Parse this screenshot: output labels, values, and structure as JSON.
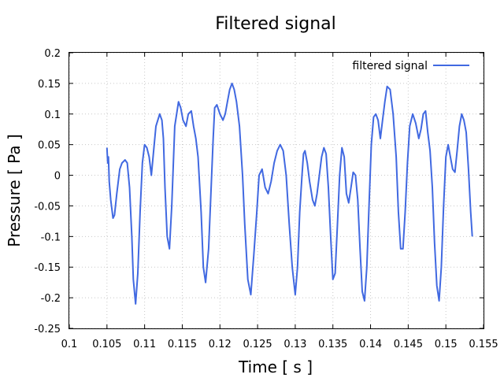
{
  "chart_data": {
    "type": "line",
    "title": "Filtered signal",
    "xlabel": "Time [ s ]",
    "ylabel": "Pressure [ Pa ]",
    "xlim": [
      0.1,
      0.155
    ],
    "ylim": [
      -0.25,
      0.2
    ],
    "xticks": [
      0.1,
      0.105,
      0.11,
      0.115,
      0.12,
      0.125,
      0.13,
      0.135,
      0.14,
      0.145,
      0.15,
      0.155
    ],
    "xtick_labels": [
      "0.1",
      "0.105",
      "0.11",
      "0.115",
      "0.12",
      "0.125",
      "0.13",
      "0.135",
      "0.14",
      "0.145",
      "0.15",
      "0.155"
    ],
    "yticks": [
      -0.25,
      -0.2,
      -0.15,
      -0.1,
      -0.05,
      0,
      0.05,
      0.1,
      0.15,
      0.2
    ],
    "ytick_labels": [
      "-0.25",
      "-0.2",
      "-0.15",
      "-0.1",
      "-0.05",
      "0",
      "0.05",
      "0.1",
      "0.15",
      "0.2"
    ],
    "grid": true,
    "legend_position": "top-right",
    "series": [
      {
        "name": "filtered signal",
        "color": "#4169e1",
        "points": [
          [
            0.105,
            0.045
          ],
          [
            0.1051,
            0.02
          ],
          [
            0.1052,
            0.03
          ],
          [
            0.1053,
            -0.01
          ],
          [
            0.1055,
            -0.04
          ],
          [
            0.1058,
            -0.07
          ],
          [
            0.106,
            -0.065
          ],
          [
            0.1063,
            -0.03
          ],
          [
            0.1067,
            0.01
          ],
          [
            0.107,
            0.02
          ],
          [
            0.1074,
            0.025
          ],
          [
            0.1077,
            0.02
          ],
          [
            0.108,
            -0.02
          ],
          [
            0.1083,
            -0.1
          ],
          [
            0.1085,
            -0.17
          ],
          [
            0.1088,
            -0.21
          ],
          [
            0.1091,
            -0.16
          ],
          [
            0.1094,
            -0.06
          ],
          [
            0.1097,
            0.02
          ],
          [
            0.11,
            0.05
          ],
          [
            0.1103,
            0.045
          ],
          [
            0.1106,
            0.03
          ],
          [
            0.1109,
            0.0
          ],
          [
            0.1112,
            0.04
          ],
          [
            0.1115,
            0.08
          ],
          [
            0.112,
            0.1
          ],
          [
            0.1123,
            0.09
          ],
          [
            0.1125,
            0.06
          ],
          [
            0.1127,
            -0.02
          ],
          [
            0.113,
            -0.1
          ],
          [
            0.1133,
            -0.12
          ],
          [
            0.1136,
            -0.05
          ],
          [
            0.114,
            0.08
          ],
          [
            0.1145,
            0.12
          ],
          [
            0.1148,
            0.11
          ],
          [
            0.1151,
            0.09
          ],
          [
            0.1155,
            0.08
          ],
          [
            0.1158,
            0.1
          ],
          [
            0.1162,
            0.105
          ],
          [
            0.1165,
            0.08
          ],
          [
            0.1168,
            0.06
          ],
          [
            0.1171,
            0.03
          ],
          [
            0.1175,
            -0.06
          ],
          [
            0.1178,
            -0.15
          ],
          [
            0.1181,
            -0.175
          ],
          [
            0.1185,
            -0.12
          ],
          [
            0.1188,
            -0.03
          ],
          [
            0.1191,
            0.06
          ],
          [
            0.1193,
            0.11
          ],
          [
            0.1196,
            0.115
          ],
          [
            0.12,
            0.1
          ],
          [
            0.1204,
            0.09
          ],
          [
            0.1207,
            0.1
          ],
          [
            0.121,
            0.12
          ],
          [
            0.1213,
            0.14
          ],
          [
            0.1216,
            0.15
          ],
          [
            0.1219,
            0.14
          ],
          [
            0.1222,
            0.12
          ],
          [
            0.1226,
            0.08
          ],
          [
            0.123,
            0.0
          ],
          [
            0.1233,
            -0.08
          ],
          [
            0.1237,
            -0.17
          ],
          [
            0.1241,
            -0.195
          ],
          [
            0.1245,
            -0.13
          ],
          [
            0.1249,
            -0.06
          ],
          [
            0.1252,
            0.0
          ],
          [
            0.1256,
            0.01
          ],
          [
            0.126,
            -0.02
          ],
          [
            0.1264,
            -0.03
          ],
          [
            0.1268,
            -0.01
          ],
          [
            0.1272,
            0.02
          ],
          [
            0.1276,
            0.04
          ],
          [
            0.128,
            0.05
          ],
          [
            0.1284,
            0.04
          ],
          [
            0.1288,
            0.0
          ],
          [
            0.1292,
            -0.08
          ],
          [
            0.1296,
            -0.15
          ],
          [
            0.13,
            -0.195
          ],
          [
            0.1303,
            -0.15
          ],
          [
            0.1306,
            -0.06
          ],
          [
            0.1309,
            0.0
          ],
          [
            0.1311,
            0.035
          ],
          [
            0.1313,
            0.04
          ],
          [
            0.1316,
            0.02
          ],
          [
            0.1319,
            -0.01
          ],
          [
            0.1323,
            -0.04
          ],
          [
            0.1326,
            -0.05
          ],
          [
            0.1329,
            -0.03
          ],
          [
            0.1332,
            0.0
          ],
          [
            0.1335,
            0.03
          ],
          [
            0.1338,
            0.045
          ],
          [
            0.1341,
            0.035
          ],
          [
            0.1344,
            -0.02
          ],
          [
            0.1347,
            -0.1
          ],
          [
            0.135,
            -0.17
          ],
          [
            0.1353,
            -0.16
          ],
          [
            0.1356,
            -0.08
          ],
          [
            0.1359,
            0.0
          ],
          [
            0.1362,
            0.045
          ],
          [
            0.1365,
            0.03
          ],
          [
            0.1368,
            -0.03
          ],
          [
            0.1371,
            -0.045
          ],
          [
            0.1374,
            -0.02
          ],
          [
            0.1377,
            0.005
          ],
          [
            0.138,
            0.0
          ],
          [
            0.1383,
            -0.04
          ],
          [
            0.1386,
            -0.12
          ],
          [
            0.1389,
            -0.19
          ],
          [
            0.1392,
            -0.205
          ],
          [
            0.1395,
            -0.15
          ],
          [
            0.1398,
            -0.05
          ],
          [
            0.1401,
            0.05
          ],
          [
            0.1404,
            0.095
          ],
          [
            0.1407,
            0.1
          ],
          [
            0.141,
            0.09
          ],
          [
            0.1413,
            0.06
          ],
          [
            0.1416,
            0.09
          ],
          [
            0.1419,
            0.12
          ],
          [
            0.1422,
            0.145
          ],
          [
            0.1426,
            0.14
          ],
          [
            0.143,
            0.1
          ],
          [
            0.1434,
            0.03
          ],
          [
            0.1437,
            -0.06
          ],
          [
            0.144,
            -0.12
          ],
          [
            0.1443,
            -0.12
          ],
          [
            0.1446,
            -0.06
          ],
          [
            0.1449,
            0.02
          ],
          [
            0.1452,
            0.08
          ],
          [
            0.1456,
            0.1
          ],
          [
            0.146,
            0.085
          ],
          [
            0.1464,
            0.06
          ],
          [
            0.1467,
            0.075
          ],
          [
            0.147,
            0.1
          ],
          [
            0.1473,
            0.105
          ],
          [
            0.1476,
            0.07
          ],
          [
            0.1479,
            0.04
          ],
          [
            0.1482,
            -0.02
          ],
          [
            0.1485,
            -0.11
          ],
          [
            0.1488,
            -0.18
          ],
          [
            0.1491,
            -0.205
          ],
          [
            0.1494,
            -0.15
          ],
          [
            0.1497,
            -0.05
          ],
          [
            0.15,
            0.03
          ],
          [
            0.1503,
            0.05
          ],
          [
            0.1506,
            0.03
          ],
          [
            0.1509,
            0.01
          ],
          [
            0.1512,
            0.005
          ],
          [
            0.1515,
            0.04
          ],
          [
            0.1518,
            0.08
          ],
          [
            0.1521,
            0.1
          ],
          [
            0.1524,
            0.09
          ],
          [
            0.1527,
            0.07
          ],
          [
            0.153,
            0.01
          ],
          [
            0.1533,
            -0.06
          ],
          [
            0.1535,
            -0.1
          ]
        ]
      }
    ]
  }
}
